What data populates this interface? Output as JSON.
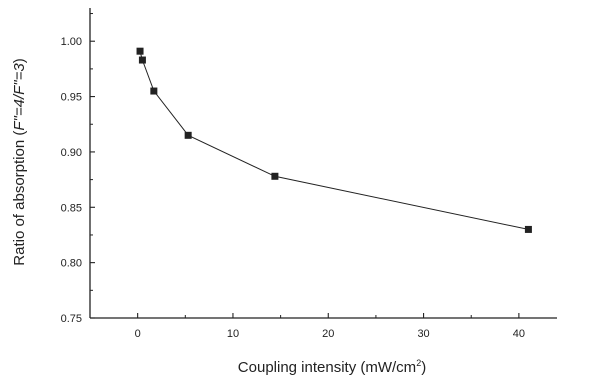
{
  "chart_data": {
    "type": "line",
    "xlabel_main": "Coupling intensity (mW/cm",
    "xlabel_sup": "2",
    "xlabel_end": ")",
    "ylabel_main": "Ratio of absorption (",
    "ylabel_italic": "F\"=4/F\"=3",
    "ylabel_end": ")",
    "xlim": [
      -5,
      44
    ],
    "ylim": [
      0.75,
      1.03
    ],
    "xticks": [
      0,
      10,
      20,
      30,
      40
    ],
    "xtick_labels": [
      "0",
      "10",
      "20",
      "30",
      "40"
    ],
    "yticks": [
      0.75,
      0.8,
      0.85,
      0.9,
      0.95,
      1.0
    ],
    "ytick_labels": [
      "0.75",
      "0.80",
      "0.85",
      "0.90",
      "0.95",
      "1.00"
    ],
    "grid": false,
    "series": [
      {
        "marker": "square",
        "color": "#222222",
        "x": [
          0.25,
          0.5,
          1.7,
          5.3,
          14.4,
          41.0
        ],
        "y": [
          0.991,
          0.983,
          0.955,
          0.915,
          0.878,
          0.83
        ]
      }
    ]
  }
}
